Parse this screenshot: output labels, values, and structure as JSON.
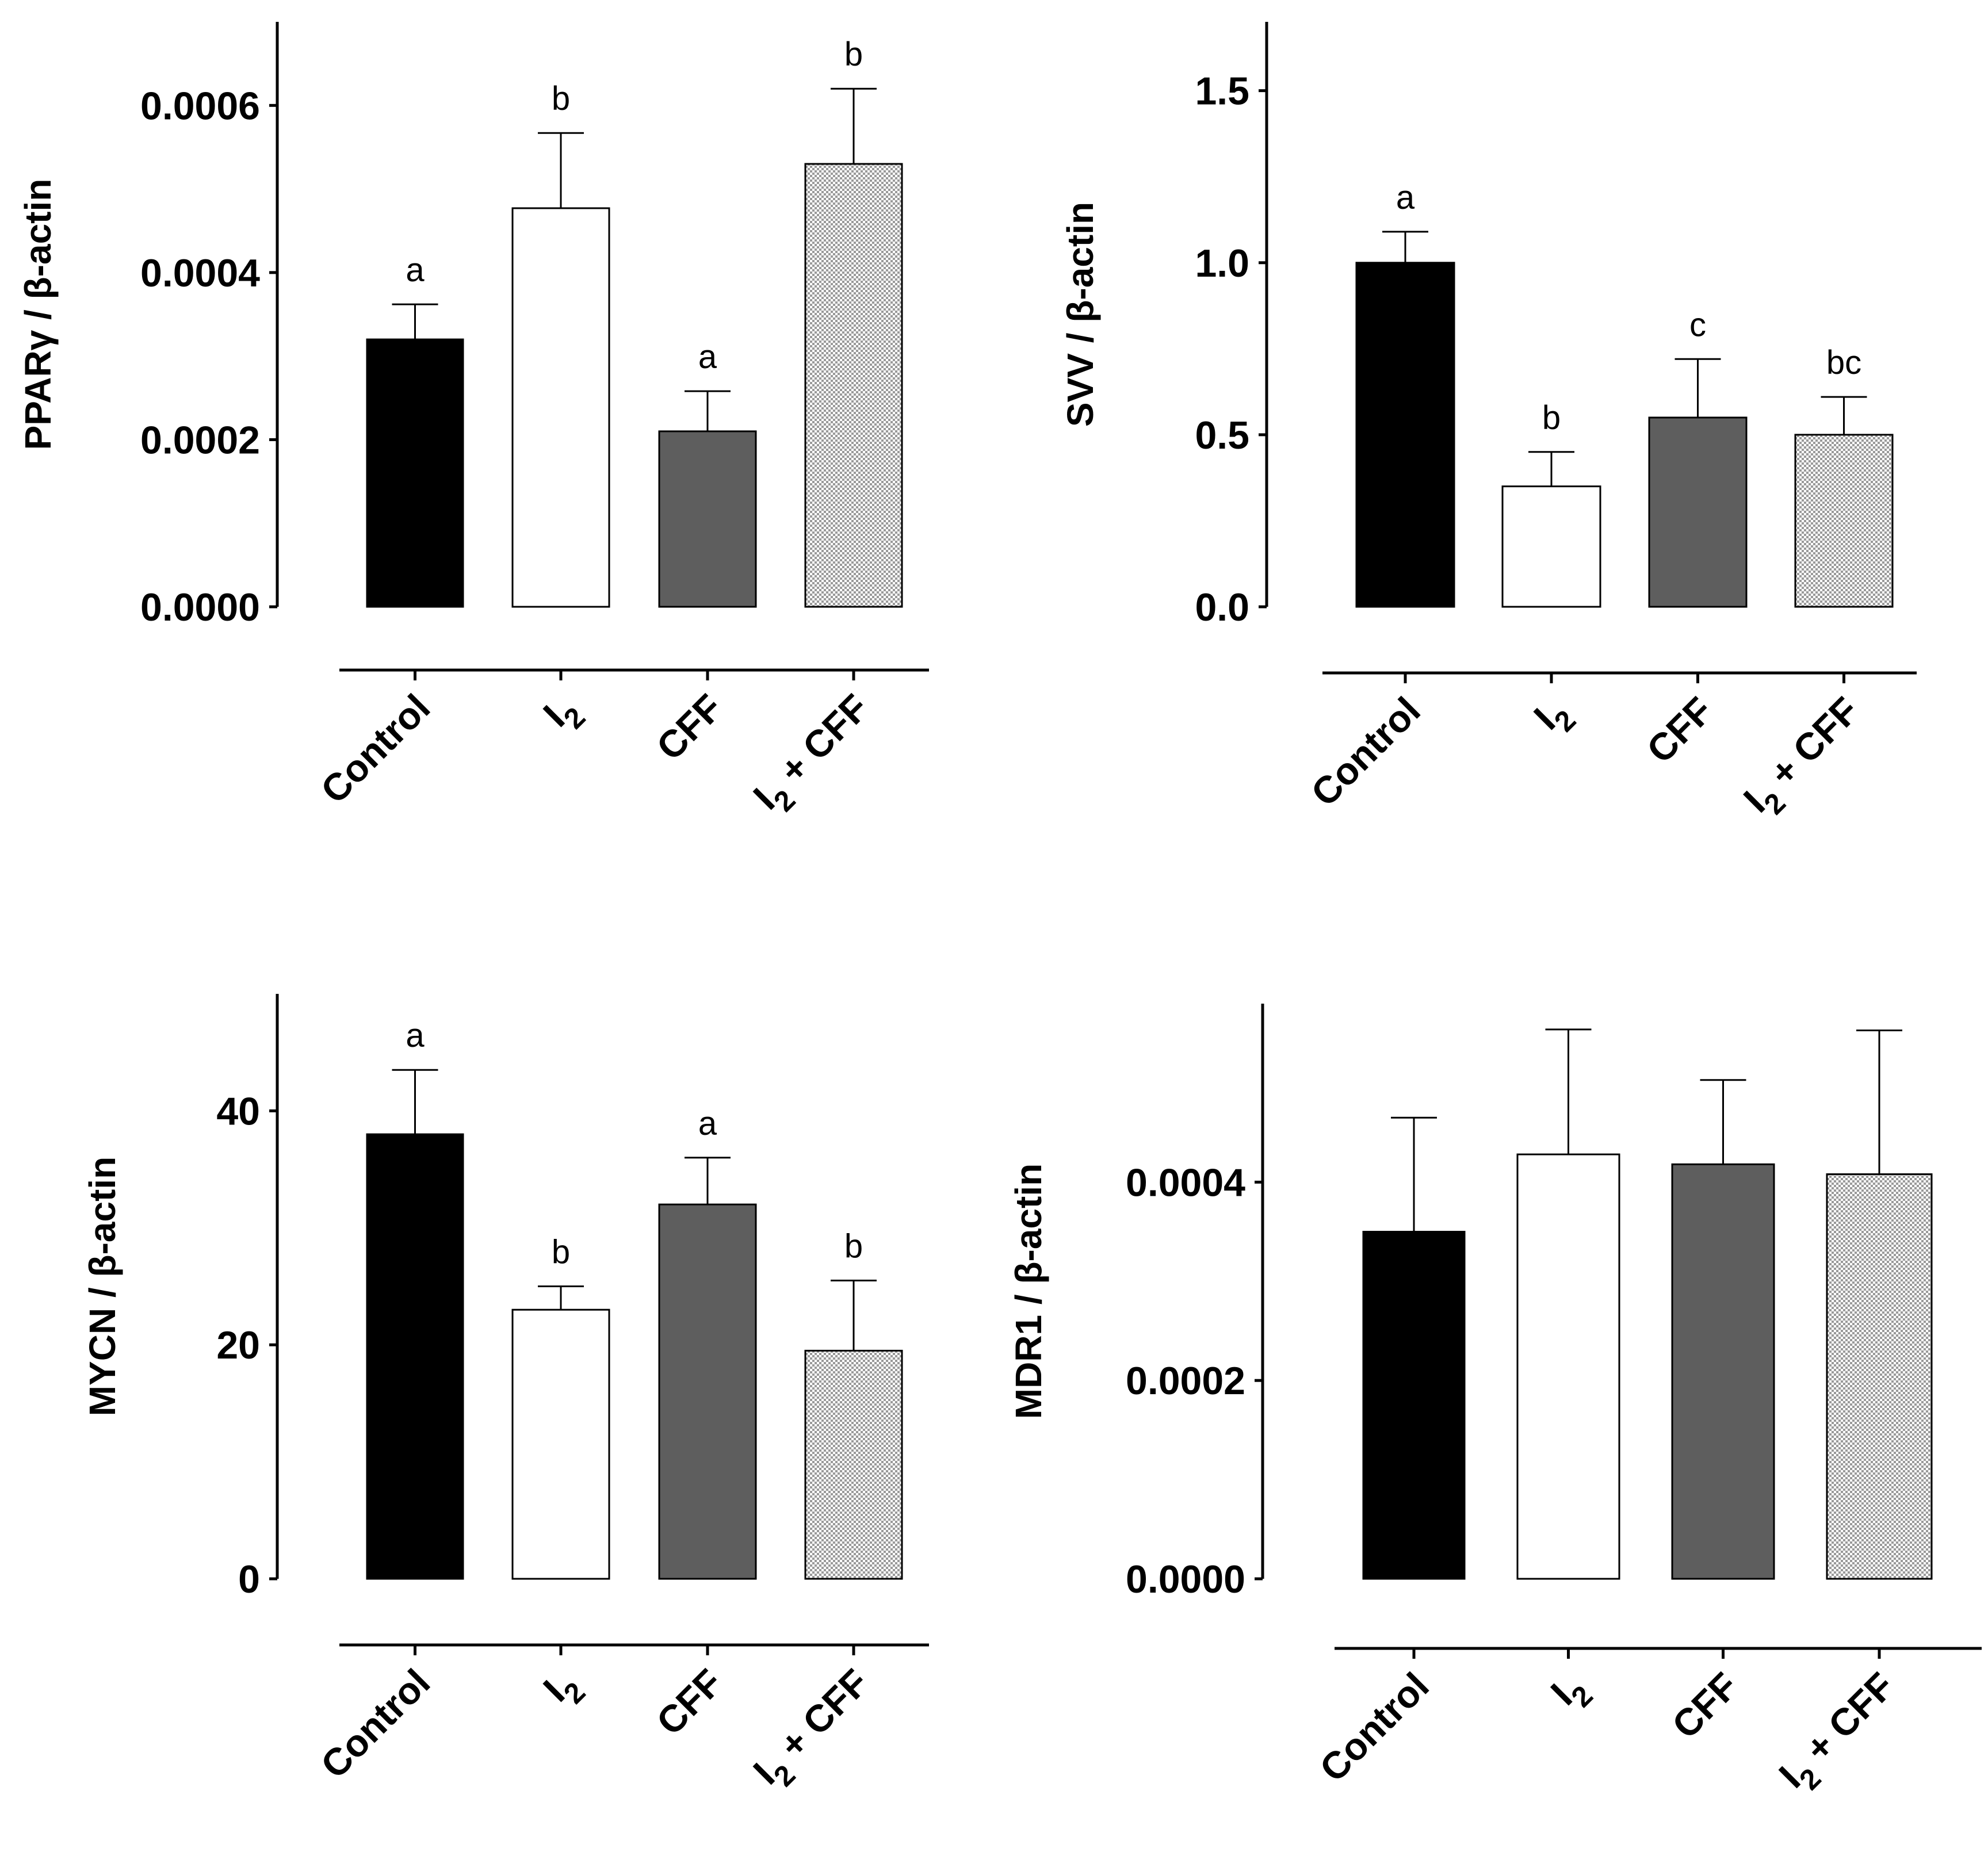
{
  "figure": {
    "colors": {
      "control": "#000000",
      "i2": "#ffffff",
      "cff": "#5e5e5e",
      "checker_dark": "#9a9a9a",
      "checker_light": "#ffffff"
    }
  },
  "chart_data": [
    {
      "type": "bar",
      "panel": "top-left",
      "ylabel": "PPARγ / β-actin",
      "categories": [
        {
          "main": "Control",
          "sub": "",
          "tail": ""
        },
        {
          "main": "I",
          "sub": "2",
          "tail": ""
        },
        {
          "main": "CFF",
          "sub": "",
          "tail": ""
        },
        {
          "main": "I",
          "sub": "2",
          "tail": " + CFF"
        }
      ],
      "fills": [
        "control",
        "i2",
        "cff",
        "checker"
      ],
      "values": [
        0.00032,
        0.000477,
        0.00021,
        0.00053
      ],
      "errors": [
        4.2e-05,
        9e-05,
        4.8e-05,
        9e-05
      ],
      "letters": [
        "a",
        "b",
        "a",
        "b"
      ],
      "ylim": [
        0,
        0.0007
      ],
      "yticks": [
        0,
        0.0002,
        0.0004,
        0.0006
      ],
      "ytick_labels": [
        "0.0000",
        "0.0002",
        "0.0004",
        "0.0006"
      ]
    },
    {
      "type": "bar",
      "panel": "top-right",
      "ylabel": "SVV / β-actin",
      "categories": [
        {
          "main": "Control",
          "sub": "",
          "tail": ""
        },
        {
          "main": "I",
          "sub": "2",
          "tail": ""
        },
        {
          "main": "CFF",
          "sub": "",
          "tail": ""
        },
        {
          "main": "I",
          "sub": "2",
          "tail": " + CFF"
        }
      ],
      "fills": [
        "control",
        "i2",
        "cff",
        "checker"
      ],
      "values": [
        1.0,
        0.35,
        0.55,
        0.5
      ],
      "errors": [
        0.09,
        0.1,
        0.17,
        0.11
      ],
      "letters": [
        "a",
        "b",
        "c",
        "bc"
      ],
      "ylim": [
        0,
        1.7
      ],
      "yticks": [
        0,
        0.5,
        1.0,
        1.5
      ],
      "ytick_labels": [
        "0.0",
        "0.5",
        "1.0",
        "1.5"
      ]
    },
    {
      "type": "bar",
      "panel": "bottom-left",
      "ylabel": "MYCN / β-actin",
      "categories": [
        {
          "main": "Control",
          "sub": "",
          "tail": ""
        },
        {
          "main": "I",
          "sub": "2",
          "tail": ""
        },
        {
          "main": "CFF",
          "sub": "",
          "tail": ""
        },
        {
          "main": "I",
          "sub": "2",
          "tail": " + CFF"
        }
      ],
      "fills": [
        "control",
        "i2",
        "cff",
        "checker"
      ],
      "values": [
        38,
        23,
        32,
        19.5
      ],
      "errors": [
        5.5,
        2.0,
        4.0,
        6.0
      ],
      "letters": [
        "a",
        "b",
        "a",
        "b"
      ],
      "ylim": [
        0,
        50
      ],
      "yticks": [
        0,
        20,
        40
      ],
      "ytick_labels": [
        "0",
        "20",
        "40"
      ]
    },
    {
      "type": "bar",
      "panel": "bottom-right",
      "ylabel": "MDR1 / β-actin",
      "categories": [
        {
          "main": "Control",
          "sub": "",
          "tail": ""
        },
        {
          "main": "I",
          "sub": "2",
          "tail": ""
        },
        {
          "main": "CFF",
          "sub": "",
          "tail": ""
        },
        {
          "main": "I",
          "sub": "2",
          "tail": " + CFF"
        }
      ],
      "fills": [
        "control",
        "i2",
        "cff",
        "checker"
      ],
      "values": [
        0.00035,
        0.000428,
        0.000418,
        0.000408
      ],
      "errors": [
        0.000115,
        0.000126,
        8.5e-05,
        0.000145
      ],
      "letters": [
        "",
        "",
        "",
        ""
      ],
      "ylim": [
        0,
        0.00058
      ],
      "yticks": [
        0,
        0.0002,
        0.0004
      ],
      "ytick_labels": [
        "0.0000",
        "0.0002",
        "0.0004"
      ]
    }
  ]
}
